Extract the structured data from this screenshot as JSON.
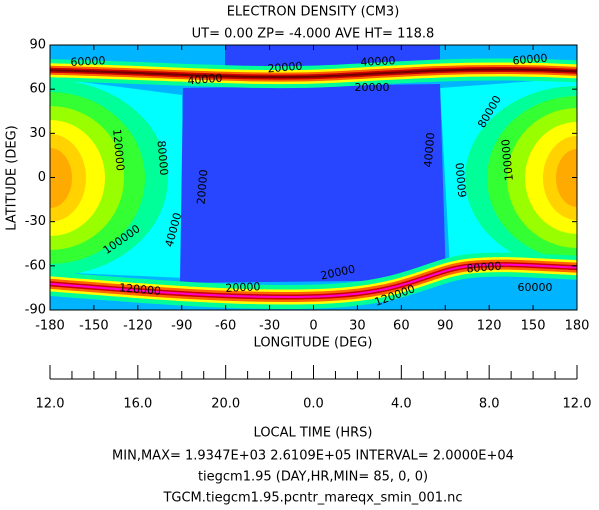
{
  "chart_data": {
    "type": "contour",
    "title": "ELECTRON DENSITY (CM3)",
    "subtitle": "UT= 0.00 ZP= -4.000 AVE HT= 118.8",
    "x_label": "LONGITUDE (DEG)",
    "y_label": "LATITUDE (DEG)",
    "xlim": [
      -180,
      180
    ],
    "xticks": [
      -180,
      -150,
      -120,
      -90,
      -60,
      -30,
      0,
      30,
      60,
      90,
      120,
      150,
      180
    ],
    "ylim": [
      -90,
      90
    ],
    "yticks": [
      -90,
      -60,
      -30,
      0,
      30,
      60,
      90
    ],
    "contour_labels": [
      60000,
      40000,
      20000,
      40000,
      20000,
      60000,
      120000,
      80000,
      20000,
      100000,
      40000,
      40000,
      60000,
      100000,
      80000,
      80000,
      60000,
      20000,
      20000,
      120000,
      120000
    ],
    "x2_label": "LOCAL TIME (HRS)",
    "x2ticks": [
      {
        "value": -180,
        "label": "12.0"
      },
      {
        "value": -120,
        "label": "16.0"
      },
      {
        "value": -60,
        "label": "20.0"
      },
      {
        "value": 0,
        "label": "0.0"
      },
      {
        "value": 60,
        "label": "4.0"
      },
      {
        "value": 120,
        "label": "8.0"
      },
      {
        "value": 180,
        "label": "12.0"
      }
    ],
    "x2minorticks": [
      -165,
      -150,
      -135,
      -105,
      -90,
      -75,
      -45,
      -30,
      -15,
      15,
      30,
      45,
      75,
      90,
      105,
      135,
      150,
      165
    ],
    "footer": [
      "MIN,MAX=  1.9347E+03  2.6109E+05 INTERVAL=  2.0000E+04",
      "tiegcm1.95 (DAY,HR,MIN= 85, 0, 0)",
      "TGCM.tiegcm1.95.pcntr_mareqx_smin_001.nc"
    ]
  }
}
